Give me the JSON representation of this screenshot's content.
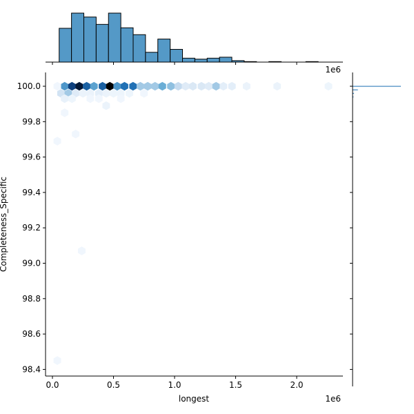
{
  "chart_data": {
    "type": "hexbin-jointplot",
    "xlabel": "longest",
    "ylabel": "Completeness_Specific",
    "x_offset_label": "1e6",
    "marginal_offset_label": "1e6",
    "xlim": [
      -0.05,
      2.4
    ],
    "ylim": [
      98.36,
      100.07
    ],
    "x_ticks": [
      "0.0",
      "0.5",
      "1.0",
      "1.5",
      "2.0"
    ],
    "y_ticks": [
      "100.0",
      "99.8",
      "99.6",
      "99.4",
      "99.2",
      "99.0",
      "98.8",
      "98.6",
      "98.4"
    ],
    "marginal_x_histogram": {
      "bin_start": 0.055,
      "bin_width": 0.101,
      "relative_heights": [
        0.69,
        1.0,
        0.92,
        0.77,
        1.0,
        0.7,
        0.56,
        0.2,
        0.47,
        0.26,
        0.08,
        0.06,
        0.08,
        0.1,
        0.03,
        0.01,
        0.0,
        0.01,
        0.0,
        0.0,
        0.01
      ]
    },
    "marginal_y_histogram": {
      "bins": [
        {
          "y": 100.0,
          "rel": 1.0
        },
        {
          "y": 99.98,
          "rel": 0.11
        },
        {
          "y": 99.96,
          "rel": 0.03
        },
        {
          "y": 99.94,
          "rel": 0.02
        }
      ]
    },
    "hexbins": [
      {
        "x": 0.1,
        "y": 100.0,
        "density": 0.55
      },
      {
        "x": 0.16,
        "y": 100.0,
        "density": 0.85
      },
      {
        "x": 0.22,
        "y": 100.0,
        "density": 0.95
      },
      {
        "x": 0.28,
        "y": 100.0,
        "density": 0.75
      },
      {
        "x": 0.34,
        "y": 100.0,
        "density": 0.5
      },
      {
        "x": 0.41,
        "y": 100.0,
        "density": 0.75
      },
      {
        "x": 0.47,
        "y": 100.0,
        "density": 1.0
      },
      {
        "x": 0.53,
        "y": 100.0,
        "density": 0.55
      },
      {
        "x": 0.59,
        "y": 100.0,
        "density": 0.7
      },
      {
        "x": 0.66,
        "y": 100.0,
        "density": 0.7
      },
      {
        "x": 0.72,
        "y": 100.0,
        "density": 0.3
      },
      {
        "x": 0.78,
        "y": 100.0,
        "density": 0.3
      },
      {
        "x": 0.84,
        "y": 100.0,
        "density": 0.3
      },
      {
        "x": 0.9,
        "y": 100.0,
        "density": 0.45
      },
      {
        "x": 0.97,
        "y": 100.0,
        "density": 0.35
      },
      {
        "x": 1.03,
        "y": 100.0,
        "density": 0.2
      },
      {
        "x": 1.09,
        "y": 100.0,
        "density": 0.1
      },
      {
        "x": 1.15,
        "y": 100.0,
        "density": 0.12
      },
      {
        "x": 1.22,
        "y": 100.0,
        "density": 0.12
      },
      {
        "x": 1.28,
        "y": 100.0,
        "density": 0.1
      },
      {
        "x": 1.34,
        "y": 100.0,
        "density": 0.3
      },
      {
        "x": 1.4,
        "y": 100.0,
        "density": 0.08
      },
      {
        "x": 1.47,
        "y": 100.0,
        "density": 0.08
      },
      {
        "x": 1.59,
        "y": 100.0,
        "density": 0.05
      },
      {
        "x": 1.84,
        "y": 100.0,
        "density": 0.05
      },
      {
        "x": 2.26,
        "y": 100.0,
        "density": 0.04
      },
      {
        "x": 0.04,
        "y": 100.0,
        "density": 0.03
      },
      {
        "x": 0.07,
        "y": 99.96,
        "density": 0.15
      },
      {
        "x": 0.13,
        "y": 99.96,
        "density": 0.3
      },
      {
        "x": 0.19,
        "y": 99.96,
        "density": 0.1
      },
      {
        "x": 0.25,
        "y": 99.96,
        "density": 0.05
      },
      {
        "x": 0.31,
        "y": 99.96,
        "density": 0.05
      },
      {
        "x": 0.38,
        "y": 99.96,
        "density": 0.08
      },
      {
        "x": 0.44,
        "y": 99.96,
        "density": 0.05
      },
      {
        "x": 0.5,
        "y": 99.96,
        "density": 0.04
      },
      {
        "x": 0.56,
        "y": 99.96,
        "density": 0.04
      },
      {
        "x": 0.63,
        "y": 99.96,
        "density": 0.04
      },
      {
        "x": 0.75,
        "y": 99.96,
        "density": 0.03
      },
      {
        "x": 0.1,
        "y": 99.93,
        "density": 0.06
      },
      {
        "x": 0.16,
        "y": 99.93,
        "density": 0.04
      },
      {
        "x": 0.31,
        "y": 99.93,
        "density": 0.03
      },
      {
        "x": 0.38,
        "y": 99.93,
        "density": 0.03
      },
      {
        "x": 0.56,
        "y": 99.93,
        "density": 0.03
      },
      {
        "x": 0.44,
        "y": 99.89,
        "density": 0.05
      },
      {
        "x": 0.1,
        "y": 99.85,
        "density": 0.03
      },
      {
        "x": 0.19,
        "y": 99.73,
        "density": 0.03
      },
      {
        "x": 0.04,
        "y": 99.69,
        "density": 0.03
      },
      {
        "x": 0.24,
        "y": 99.07,
        "density": 0.03
      },
      {
        "x": 0.04,
        "y": 98.45,
        "density": 0.03
      }
    ]
  }
}
